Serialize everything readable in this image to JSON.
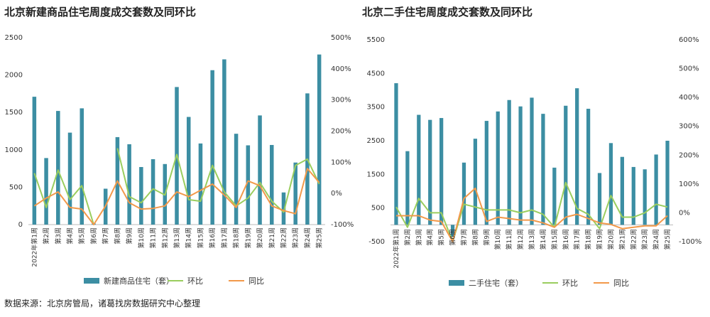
{
  "source_note": "数据来源：北京房管局，诸葛找房数据研究中心整理",
  "colors": {
    "bar": "#3C8EA3",
    "hb_line": "#9ACD5E",
    "tb_line": "#F2994A",
    "tick_text": "#333333",
    "grid": "#dddddd"
  },
  "chart_data": [
    {
      "type": "bar",
      "title": "北京新建商品住宅周度成交套数及同环比",
      "categories": [
        "2022年第1周",
        "第2周",
        "第3周",
        "第4周",
        "第5周",
        "第6周",
        "第7周",
        "第8周",
        "第9周",
        "第10周",
        "第11周",
        "第12周",
        "第13周",
        "第14周",
        "第15周",
        "第16周",
        "第17周",
        "第18周",
        "第19周",
        "第20周",
        "第21周",
        "第22周",
        "第23周",
        "第24周",
        "第25周"
      ],
      "y_left": {
        "lim": [
          0,
          2500
        ],
        "ticks": [
          0,
          500,
          1000,
          1500,
          2000,
          2500
        ]
      },
      "y_right": {
        "lim": [
          -100,
          500
        ],
        "ticks": [
          -100,
          0,
          100,
          200,
          300,
          400,
          500
        ],
        "tick_labels": [
          "-100%",
          "0%",
          "100%",
          "200%",
          "300%",
          "400%",
          "500%"
        ]
      },
      "series": [
        {
          "name": "新建商品住宅（套）",
          "axis": "left",
          "kind": "bar",
          "values": [
            1710,
            890,
            1520,
            1230,
            1555,
            15,
            480,
            1170,
            1075,
            770,
            875,
            810,
            1840,
            1440,
            1085,
            2065,
            2210,
            1215,
            1060,
            1460,
            1065,
            430,
            830,
            1755,
            2275
          ]
        },
        {
          "name": "环比",
          "axis": "right",
          "kind": "line",
          "values": [
            65,
            -45,
            75,
            -20,
            25,
            -100,
            null,
            145,
            -10,
            -30,
            15,
            -5,
            125,
            -20,
            -25,
            90,
            5,
            -40,
            -15,
            35,
            -25,
            -60,
            90,
            110,
            30
          ]
        },
        {
          "name": "同比",
          "axis": "right",
          "kind": "line",
          "values": [
            -40,
            -15,
            5,
            -45,
            -50,
            -100,
            -40,
            40,
            -30,
            -50,
            -48,
            -40,
            5,
            -10,
            10,
            30,
            -5,
            -45,
            40,
            25,
            -40,
            -55,
            -65,
            80,
            35
          ]
        }
      ]
    },
    {
      "type": "bar",
      "title": "北京二手住宅周度成交套数及同环比",
      "categories": [
        "2022年第1周",
        "第2周",
        "第3周",
        "第4周",
        "第5周",
        "第6周",
        "第7周",
        "第8周",
        "第9周",
        "第10周",
        "第11周",
        "第12周",
        "第13周",
        "第14周",
        "第15周",
        "第16周",
        "第17周",
        "第18周",
        "第19周",
        "第20周",
        "第21周",
        "第22周",
        "第23周",
        "第24周",
        "第25周"
      ],
      "y_left": {
        "lim": [
          -500,
          5500
        ],
        "ticks": [
          -500,
          500,
          1500,
          2500,
          3500,
          4500,
          5500
        ]
      },
      "y_right": {
        "lim": [
          -100,
          600
        ],
        "ticks": [
          -100,
          0,
          100,
          200,
          300,
          400,
          500,
          600
        ],
        "tick_labels": [
          "-100%",
          "0%",
          "100%",
          "200%",
          "300%",
          "400%",
          "500%",
          "600%"
        ]
      },
      "series": [
        {
          "name": "二手住宅（套）",
          "axis": "left",
          "kind": "bar",
          "values": [
            4210,
            2190,
            3270,
            3120,
            3175,
            -350,
            1850,
            2560,
            3090,
            3370,
            3710,
            3520,
            3780,
            3300,
            1700,
            3540,
            4060,
            3450,
            1540,
            2430,
            2020,
            1720,
            1650,
            2090,
            2500
          ]
        },
        {
          "name": "环比",
          "axis": "right",
          "kind": "line",
          "values": [
            20,
            -50,
            50,
            0,
            0,
            -100,
            30,
            20,
            10,
            10,
            10,
            0,
            10,
            -5,
            -50,
            105,
            15,
            -5,
            -55,
            60,
            -15,
            -15,
            0,
            30,
            20
          ]
        },
        {
          "name": "同比",
          "axis": "right",
          "kind": "line",
          "values": [
            -10,
            -10,
            -10,
            -25,
            -30,
            -100,
            50,
            85,
            -30,
            -15,
            -20,
            -25,
            -25,
            -35,
            -50,
            -15,
            -5,
            -20,
            -35,
            -40,
            -55,
            -50,
            -45,
            -45,
            -10
          ]
        }
      ]
    }
  ]
}
